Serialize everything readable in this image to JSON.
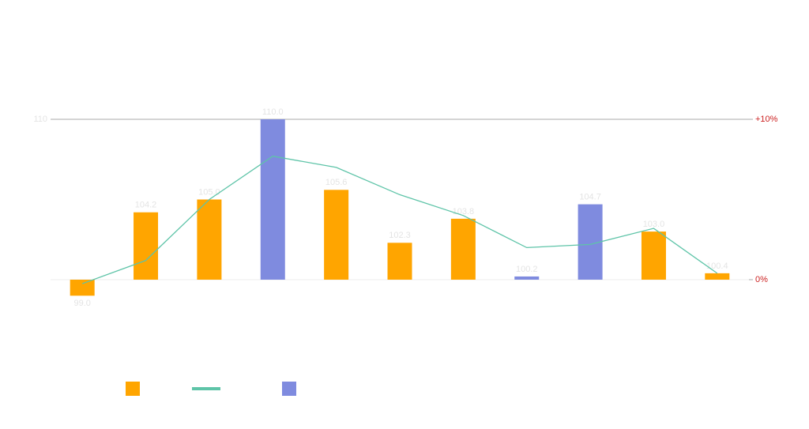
{
  "chart_data": {
    "type": "bar",
    "series": [
      {
        "type": "bar",
        "color": "#ffa500",
        "colors": [
          "#ffa500",
          "#ffa500",
          "#ffa500",
          "#7f8bdf",
          "#ffa500",
          "#ffa500",
          "#ffa500",
          "#7f8bdf",
          "#7f8bdf",
          "#ffa500",
          "#ffa500"
        ],
        "values": [
          99.0,
          104.2,
          105.0,
          110.0,
          105.6,
          102.3,
          103.8,
          100.2,
          104.7,
          103.0,
          100.4
        ],
        "value_labels": [
          "99.0",
          "104.2",
          "105.0",
          "110.0",
          "105.6",
          "102.3",
          "103.8",
          "100.2",
          "104.7",
          "103.0",
          "100.4"
        ]
      },
      {
        "type": "line",
        "axis": "y2",
        "color": "#5ec4a8",
        "values": [
          -0.25,
          1.2,
          5.0,
          7.7,
          7.0,
          5.3,
          4.0,
          2.0,
          2.2,
          3.2,
          0.4
        ]
      }
    ],
    "legend_colors": [
      "#ffa500",
      "#5ec4a8",
      "#7f8bdf"
    ],
    "ylim": [
      100,
      110
    ],
    "yticks": [
      110
    ],
    "y2lim": [
      0,
      10
    ],
    "y2ticks": [
      {
        "value": 0,
        "label": "0%"
      },
      {
        "value": 10,
        "label": "+10%"
      }
    ]
  }
}
